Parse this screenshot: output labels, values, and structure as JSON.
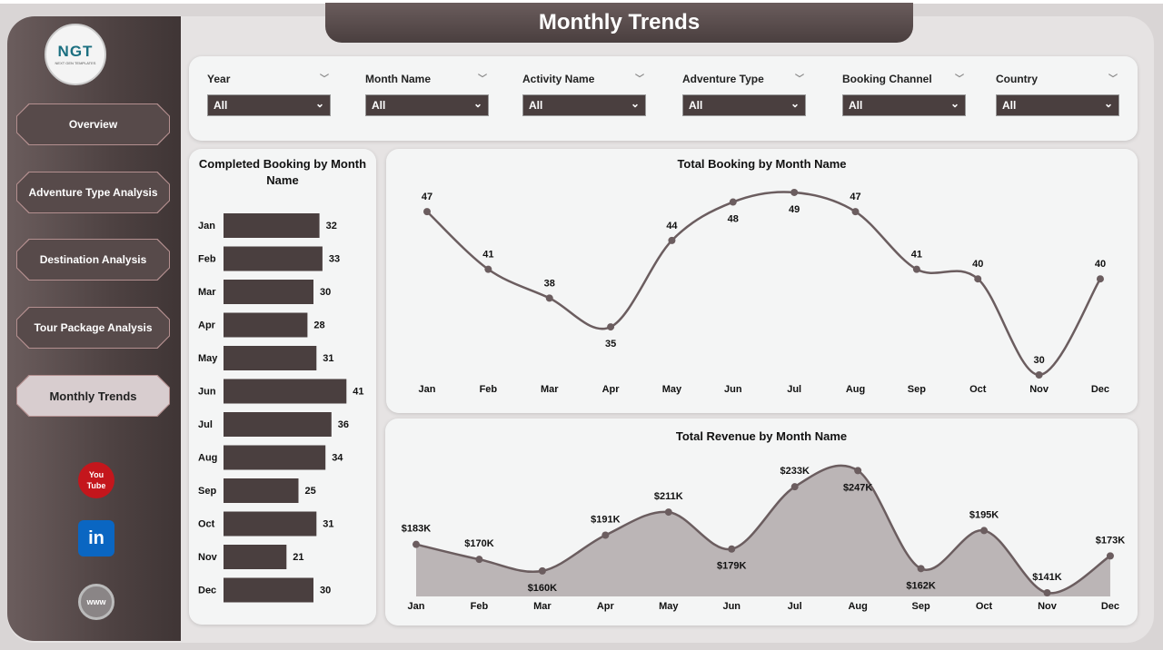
{
  "page_title": "Monthly Trends",
  "logo": {
    "text": "NGT",
    "subtext": "NEXT GEN TEMPLATES"
  },
  "nav": [
    {
      "label": "Overview"
    },
    {
      "label": "Adventure Type Analysis"
    },
    {
      "label": "Destination Analysis"
    },
    {
      "label": "Tour Package Analysis"
    },
    {
      "label": "Monthly Trends",
      "active": true
    }
  ],
  "social": [
    {
      "icon": "youtube-icon",
      "label": "You Tube"
    },
    {
      "icon": "linkedin-icon",
      "label": "in"
    },
    {
      "icon": "globe-icon",
      "label": "www"
    }
  ],
  "filters": [
    {
      "label": "Year",
      "value": "All"
    },
    {
      "label": "Month Name",
      "value": "All"
    },
    {
      "label": "Activity Name",
      "value": "All"
    },
    {
      "label": "Adventure Type",
      "value": "All"
    },
    {
      "label": "Booking Channel",
      "value": "All"
    },
    {
      "label": "Country",
      "value": "All"
    }
  ],
  "colors": {
    "primary": "#4a3f3f",
    "area": "#bbb5b6",
    "line": "#6b5d5f"
  },
  "chart_data": [
    {
      "type": "bar",
      "orientation": "horizontal",
      "title": "Completed Booking by Month Name",
      "categories": [
        "Jan",
        "Feb",
        "Mar",
        "Apr",
        "May",
        "Jun",
        "Jul",
        "Aug",
        "Sep",
        "Oct",
        "Nov",
        "Dec"
      ],
      "values": [
        32,
        33,
        30,
        28,
        31,
        41,
        36,
        34,
        25,
        31,
        21,
        30
      ]
    },
    {
      "type": "line",
      "title": "Total Booking by Month Name",
      "categories": [
        "Jan",
        "Feb",
        "Mar",
        "Apr",
        "May",
        "Jun",
        "Jul",
        "Aug",
        "Sep",
        "Oct",
        "Nov",
        "Dec"
      ],
      "values": [
        47,
        41,
        38,
        35,
        44,
        48,
        49,
        47,
        41,
        40,
        30,
        40
      ]
    },
    {
      "type": "area",
      "title": "Total Revenue by Month Name",
      "categories": [
        "Jan",
        "Feb",
        "Mar",
        "Apr",
        "May",
        "Jun",
        "Jul",
        "Aug",
        "Sep",
        "Oct",
        "Nov",
        "Dec"
      ],
      "values": [
        183,
        170,
        160,
        191,
        211,
        179,
        233,
        247,
        162,
        195,
        141,
        173
      ],
      "labels": [
        "$183K",
        "$170K",
        "$160K",
        "$191K",
        "$211K",
        "$179K",
        "$233K",
        "$247K",
        "$162K",
        "$195K",
        "$141K",
        "$173K"
      ]
    }
  ]
}
